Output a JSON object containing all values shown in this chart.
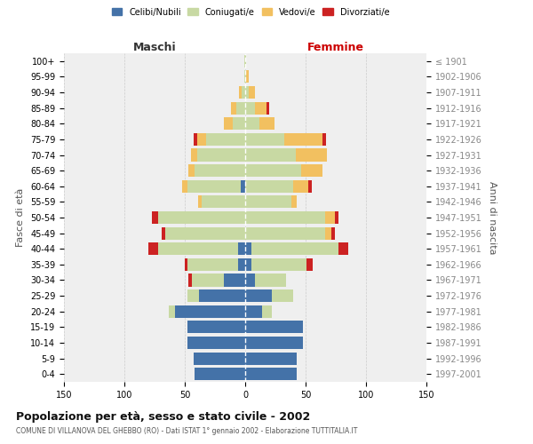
{
  "age_groups": [
    "0-4",
    "5-9",
    "10-14",
    "15-19",
    "20-24",
    "25-29",
    "30-34",
    "35-39",
    "40-44",
    "45-49",
    "50-54",
    "55-59",
    "60-64",
    "65-69",
    "70-74",
    "75-79",
    "80-84",
    "85-89",
    "90-94",
    "95-99",
    "100+"
  ],
  "birth_years": [
    "1997-2001",
    "1992-1996",
    "1987-1991",
    "1982-1986",
    "1977-1981",
    "1972-1976",
    "1967-1971",
    "1962-1966",
    "1957-1961",
    "1952-1956",
    "1947-1951",
    "1942-1946",
    "1937-1941",
    "1932-1936",
    "1927-1931",
    "1922-1926",
    "1917-1921",
    "1912-1916",
    "1907-1911",
    "1902-1906",
    "≤ 1901"
  ],
  "male": {
    "celibi": [
      42,
      43,
      48,
      48,
      58,
      38,
      18,
      6,
      6,
      0,
      0,
      0,
      4,
      0,
      0,
      0,
      0,
      0,
      0,
      0,
      0
    ],
    "coniugati": [
      0,
      0,
      0,
      0,
      5,
      10,
      26,
      42,
      66,
      66,
      72,
      36,
      44,
      42,
      40,
      32,
      10,
      7,
      3,
      1,
      1
    ],
    "vedovi": [
      0,
      0,
      0,
      0,
      0,
      0,
      0,
      0,
      0,
      0,
      0,
      3,
      4,
      5,
      5,
      8,
      8,
      5,
      2,
      0,
      0
    ],
    "divorziati": [
      0,
      0,
      0,
      0,
      0,
      0,
      3,
      2,
      8,
      3,
      5,
      0,
      0,
      0,
      0,
      3,
      0,
      0,
      0,
      0,
      0
    ]
  },
  "female": {
    "nubili": [
      43,
      43,
      48,
      48,
      14,
      22,
      8,
      5,
      5,
      0,
      0,
      0,
      0,
      0,
      0,
      0,
      0,
      0,
      0,
      0,
      0
    ],
    "coniugate": [
      0,
      0,
      0,
      0,
      8,
      18,
      26,
      46,
      72,
      66,
      66,
      38,
      40,
      46,
      42,
      32,
      12,
      8,
      3,
      1,
      1
    ],
    "vedove": [
      0,
      0,
      0,
      0,
      0,
      0,
      0,
      0,
      0,
      5,
      8,
      5,
      12,
      18,
      26,
      32,
      12,
      10,
      5,
      2,
      0
    ],
    "divorziate": [
      0,
      0,
      0,
      0,
      0,
      0,
      0,
      5,
      8,
      3,
      3,
      0,
      3,
      0,
      0,
      3,
      0,
      2,
      0,
      0,
      0
    ]
  },
  "colors": {
    "celibi_nubili": "#4472a8",
    "coniugati_e": "#c8d9a3",
    "vedovi_e": "#f2c060",
    "divorziati_e": "#cc2222"
  },
  "title": "Popolazione per età, sesso e stato civile - 2002",
  "subtitle": "COMUNE DI VILLANOVA DEL GHEBBO (RO) - Dati ISTAT 1° gennaio 2002 - Elaborazione TUTTITALIA.IT",
  "xlabel_left": "Maschi",
  "xlabel_right": "Femmine",
  "ylabel_left": "Fasce di età",
  "ylabel_right": "Anni di nascita",
  "xlim": 150,
  "bg_color": "#ffffff",
  "plot_bg": "#efefef",
  "grid_color": "#cccccc"
}
